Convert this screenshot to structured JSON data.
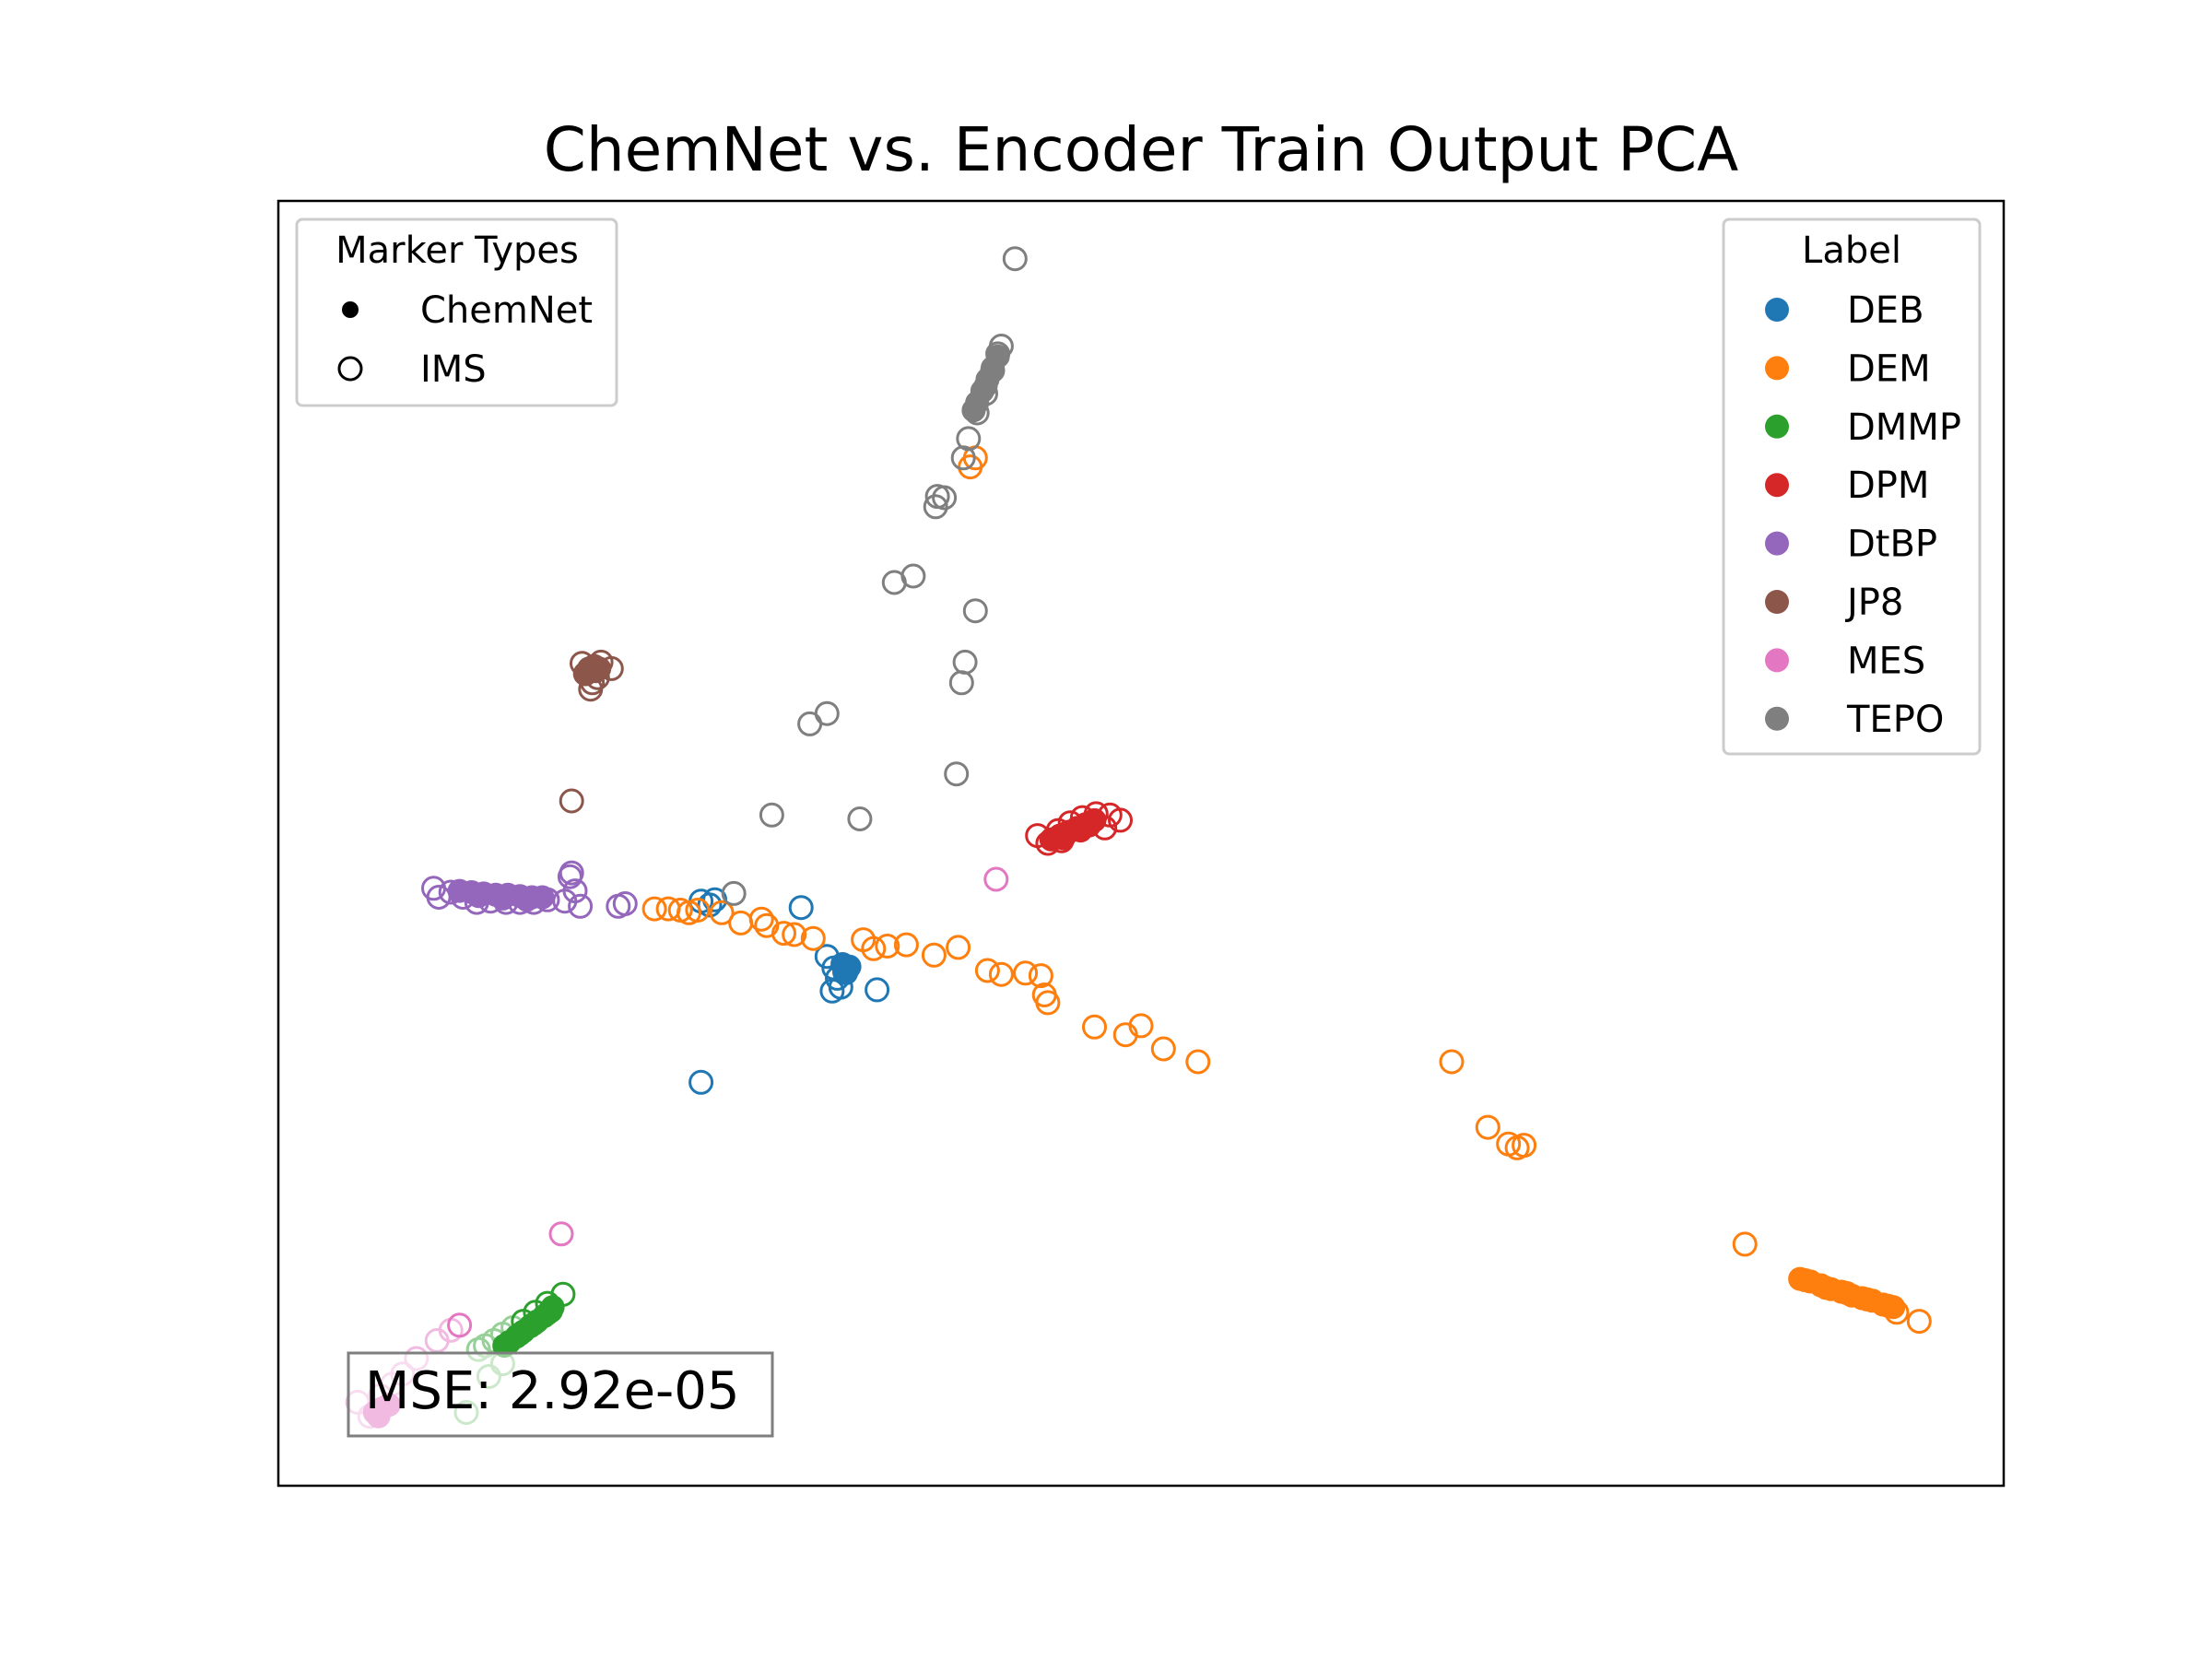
{
  "chart_data": {
    "type": "scatter",
    "title": "ChemNet vs. Encoder Train Output PCA",
    "xlabel": "",
    "ylabel": "",
    "xlim": [
      0,
      100
    ],
    "ylim": [
      0,
      100
    ],
    "grid": false,
    "axis_ticks": "hidden",
    "annotation": "MSE: 2.92e-05",
    "marker_legend": {
      "title": "Marker Types",
      "placement": "top-left",
      "entries": [
        {
          "label": "ChemNet",
          "marker": "filled"
        },
        {
          "label": "IMS",
          "marker": "hollow"
        }
      ]
    },
    "label_legend": {
      "title": "Label",
      "placement": "top-right",
      "entries": [
        {
          "label": "DEB",
          "color": "#1f77b4"
        },
        {
          "label": "DEM",
          "color": "#ff7f0e"
        },
        {
          "label": "DMMP",
          "color": "#2ca02c"
        },
        {
          "label": "DPM",
          "color": "#d62728"
        },
        {
          "label": "DtBP",
          "color": "#9467bd"
        },
        {
          "label": "JP8",
          "color": "#8c564b"
        },
        {
          "label": "MES",
          "color": "#e377c2"
        },
        {
          "label": "TEPO",
          "color": "#7f7f7f"
        }
      ]
    },
    "series": [
      {
        "name": "DEB",
        "color": "#1f77b4",
        "chemnet": [
          [
            32.7,
            40.6
          ],
          [
            32.9,
            39.9
          ],
          [
            33.1,
            40.4
          ],
          [
            32.8,
            40.0
          ],
          [
            33.0,
            40.2
          ]
        ],
        "ims": [
          [
            31.8,
            41.2
          ],
          [
            32.2,
            40.3
          ],
          [
            32.4,
            39.5
          ],
          [
            32.6,
            38.8
          ],
          [
            32.1,
            38.5
          ],
          [
            34.7,
            38.6
          ],
          [
            25.0,
            45.2
          ],
          [
            24.5,
            45.5
          ],
          [
            25.3,
            45.6
          ],
          [
            30.3,
            45.0
          ],
          [
            24.5,
            31.4
          ]
        ]
      },
      {
        "name": "DEM",
        "color": "#ff7f0e",
        "chemnet": [
          [
            88.2,
            16.1
          ],
          [
            88.8,
            15.9
          ],
          [
            89.4,
            15.6
          ],
          [
            90.0,
            15.3
          ],
          [
            90.6,
            15.1
          ],
          [
            91.2,
            14.8
          ],
          [
            91.8,
            14.6
          ],
          [
            92.4,
            14.4
          ],
          [
            93.0,
            14.1
          ],
          [
            93.6,
            13.9
          ],
          [
            88.5,
            16.0
          ],
          [
            89.7,
            15.4
          ],
          [
            90.9,
            15.0
          ],
          [
            92.1,
            14.5
          ],
          [
            93.3,
            14.0
          ]
        ],
        "ims": [
          [
            21.8,
            44.9
          ],
          [
            22.6,
            44.9
          ],
          [
            23.3,
            44.8
          ],
          [
            23.8,
            44.6
          ],
          [
            24.3,
            44.8
          ],
          [
            25.7,
            44.6
          ],
          [
            26.8,
            43.8
          ],
          [
            28.0,
            44.1
          ],
          [
            28.3,
            43.6
          ],
          [
            29.3,
            43.0
          ],
          [
            29.9,
            42.9
          ],
          [
            31.0,
            42.6
          ],
          [
            33.9,
            42.5
          ],
          [
            34.5,
            41.8
          ],
          [
            35.3,
            42.0
          ],
          [
            36.4,
            42.1
          ],
          [
            38.0,
            41.3
          ],
          [
            39.4,
            41.9
          ],
          [
            41.1,
            40.1
          ],
          [
            41.9,
            39.8
          ],
          [
            43.3,
            39.9
          ],
          [
            44.2,
            39.7
          ],
          [
            44.4,
            38.2
          ],
          [
            44.6,
            37.6
          ],
          [
            47.3,
            35.7
          ],
          [
            49.1,
            35.1
          ],
          [
            50.0,
            35.8
          ],
          [
            51.3,
            34.0
          ],
          [
            53.3,
            33.0
          ],
          [
            68.0,
            33.0
          ],
          [
            70.1,
            27.9
          ],
          [
            71.3,
            26.6
          ],
          [
            71.8,
            26.3
          ],
          [
            72.2,
            26.5
          ],
          [
            85.0,
            18.8
          ],
          [
            93.8,
            13.5
          ],
          [
            95.1,
            12.8
          ],
          [
            40.1,
            79.3
          ],
          [
            40.4,
            80.0
          ]
        ]
      },
      {
        "name": "DMMP",
        "color": "#2ca02c",
        "chemnet": [
          [
            13.4,
            11.2
          ],
          [
            13.8,
            11.6
          ],
          [
            14.2,
            12.0
          ],
          [
            14.6,
            12.4
          ],
          [
            15.0,
            12.8
          ],
          [
            15.4,
            13.2
          ],
          [
            15.8,
            13.6
          ],
          [
            14.0,
            11.8
          ],
          [
            14.8,
            12.6
          ],
          [
            15.6,
            13.4
          ],
          [
            13.1,
            10.9
          ],
          [
            15.9,
            13.9
          ]
        ],
        "ims": [
          [
            11.6,
            10.6
          ],
          [
            12.0,
            10.9
          ],
          [
            12.5,
            11.3
          ],
          [
            13.0,
            11.8
          ],
          [
            13.6,
            12.3
          ],
          [
            14.2,
            12.8
          ],
          [
            14.9,
            13.5
          ],
          [
            15.6,
            14.2
          ],
          [
            16.5,
            14.9
          ],
          [
            10.9,
            5.7
          ],
          [
            13.0,
            9.5
          ],
          [
            12.2,
            8.5
          ]
        ]
      },
      {
        "name": "DPM",
        "color": "#d62728",
        "chemnet": [
          [
            44.8,
            50.3
          ],
          [
            45.3,
            50.6
          ],
          [
            45.8,
            50.9
          ],
          [
            46.3,
            51.2
          ],
          [
            46.8,
            51.5
          ],
          [
            47.3,
            51.8
          ],
          [
            45.5,
            50.4
          ],
          [
            46.5,
            51.0
          ],
          [
            47.0,
            51.4
          ]
        ],
        "ims": [
          [
            44.0,
            50.6
          ],
          [
            44.6,
            50.0
          ],
          [
            45.2,
            51.0
          ],
          [
            45.9,
            51.6
          ],
          [
            46.6,
            52.0
          ],
          [
            47.4,
            52.3
          ],
          [
            48.2,
            52.2
          ],
          [
            48.8,
            51.8
          ],
          [
            45.4,
            50.2
          ],
          [
            47.9,
            51.2
          ]
        ]
      },
      {
        "name": "DtBP",
        "color": "#9467bd",
        "chemnet": [
          [
            10.5,
            46.3
          ],
          [
            11.2,
            46.2
          ],
          [
            11.9,
            46.1
          ],
          [
            12.6,
            46.0
          ],
          [
            13.3,
            46.0
          ],
          [
            14.0,
            45.9
          ],
          [
            14.7,
            45.8
          ],
          [
            15.3,
            45.8
          ],
          [
            11.6,
            45.9
          ],
          [
            13.0,
            45.7
          ],
          [
            14.4,
            45.6
          ]
        ],
        "ims": [
          [
            9.0,
            46.5
          ],
          [
            9.3,
            45.8
          ],
          [
            10.0,
            46.2
          ],
          [
            10.7,
            45.8
          ],
          [
            11.5,
            45.4
          ],
          [
            12.3,
            45.5
          ],
          [
            13.2,
            45.4
          ],
          [
            14.0,
            45.4
          ],
          [
            14.8,
            45.4
          ],
          [
            15.6,
            45.6
          ],
          [
            16.6,
            45.5
          ],
          [
            16.9,
            47.4
          ],
          [
            17.0,
            47.7
          ],
          [
            17.2,
            46.3
          ],
          [
            17.5,
            45.1
          ],
          [
            19.7,
            45.1
          ],
          [
            20.1,
            45.3
          ]
        ]
      },
      {
        "name": "JP8",
        "color": "#8c564b",
        "chemnet": [
          [
            18.0,
            63.6
          ],
          [
            18.4,
            63.4
          ],
          [
            18.3,
            63.8
          ],
          [
            17.9,
            63.3
          ],
          [
            18.6,
            63.6
          ]
        ],
        "ims": [
          [
            17.6,
            64.0
          ],
          [
            17.8,
            63.2
          ],
          [
            18.2,
            62.5
          ],
          [
            18.5,
            62.9
          ],
          [
            18.7,
            64.1
          ],
          [
            19.3,
            63.6
          ],
          [
            18.1,
            62.0
          ],
          [
            17.0,
            53.3
          ]
        ]
      },
      {
        "name": "MES",
        "color": "#e377c2",
        "chemnet": [
          [
            5.6,
            5.7
          ],
          [
            6.0,
            6.0
          ],
          [
            6.4,
            6.3
          ],
          [
            5.8,
            5.4
          ]
        ],
        "ims": [
          [
            4.6,
            6.5
          ],
          [
            5.3,
            5.4
          ],
          [
            5.9,
            7.0
          ],
          [
            6.6,
            7.9
          ],
          [
            7.2,
            8.7
          ],
          [
            8.0,
            9.9
          ],
          [
            9.2,
            11.3
          ],
          [
            10.0,
            12.1
          ],
          [
            10.5,
            12.5
          ],
          [
            16.4,
            19.6
          ],
          [
            41.6,
            47.2
          ]
        ]
      },
      {
        "name": "TEPO",
        "color": "#7f7f7f",
        "chemnet": [
          [
            40.5,
            84.3
          ],
          [
            40.8,
            85.2
          ],
          [
            41.1,
            86.1
          ],
          [
            41.4,
            87.0
          ],
          [
            41.7,
            87.9
          ],
          [
            40.3,
            83.7
          ],
          [
            41.0,
            85.6
          ]
        ],
        "ims": [
          [
            42.7,
            95.5
          ],
          [
            41.9,
            88.7
          ],
          [
            41.7,
            88.1
          ],
          [
            41.4,
            86.8
          ],
          [
            41.0,
            85.0
          ],
          [
            40.5,
            83.5
          ],
          [
            40.0,
            81.5
          ],
          [
            39.7,
            80.0
          ],
          [
            38.2,
            77.0
          ],
          [
            38.6,
            76.9
          ],
          [
            38.1,
            76.2
          ],
          [
            35.7,
            70.3
          ],
          [
            36.8,
            70.8
          ],
          [
            40.4,
            68.1
          ],
          [
            39.8,
            64.1
          ],
          [
            39.6,
            62.5
          ],
          [
            30.8,
            59.3
          ],
          [
            31.8,
            60.1
          ],
          [
            39.3,
            55.4
          ],
          [
            28.6,
            52.2
          ],
          [
            33.7,
            51.9
          ],
          [
            26.4,
            46.1
          ]
        ]
      }
    ]
  }
}
